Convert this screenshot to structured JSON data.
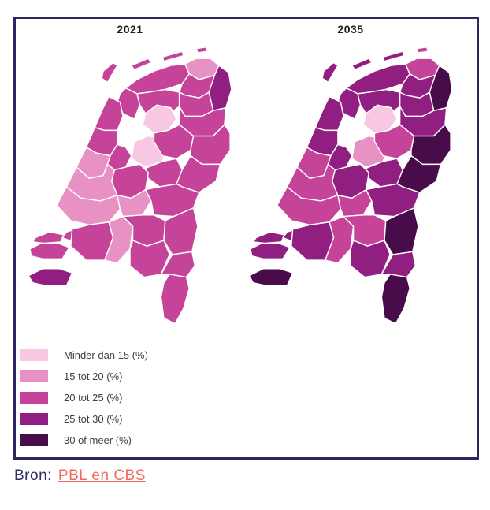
{
  "chart_data": {
    "type": "choropleth",
    "geography": "Nederland",
    "maps": [
      "2021",
      "2035"
    ],
    "unit": "%",
    "legend_position": "bottom-left",
    "classes": [
      {
        "label": "Minder dan 15 (%)",
        "color": "#f8c8e3"
      },
      {
        "label": "15 tot 20 (%)",
        "color": "#e791c5"
      },
      {
        "label": "20 tot 25 (%)",
        "color": "#c5449a"
      },
      {
        "label": "25 tot 30 (%)",
        "color": "#911e81"
      },
      {
        "label": "30 of meer (%)",
        "color": "#490c4b"
      }
    ],
    "regions": [
      {
        "id": "texel",
        "class_by_year": [
          3,
          4
        ]
      },
      {
        "id": "terschelling",
        "class_by_year": [
          3,
          4
        ]
      },
      {
        "id": "ameland",
        "class_by_year": [
          3,
          4
        ]
      },
      {
        "id": "schiermonnikoog",
        "class_by_year": [
          3,
          3
        ]
      },
      {
        "id": "friesland-noord",
        "class_by_year": [
          3,
          4
        ]
      },
      {
        "id": "friesland-zuidwest",
        "class_by_year": [
          3,
          4
        ]
      },
      {
        "id": "friesland-zuidoost",
        "class_by_year": [
          3,
          4
        ]
      },
      {
        "id": "groningen-noord",
        "class_by_year": [
          2,
          3
        ]
      },
      {
        "id": "groningen-stad",
        "class_by_year": [
          3,
          4
        ]
      },
      {
        "id": "oost-groningen",
        "class_by_year": [
          4,
          5
        ]
      },
      {
        "id": "drenthe-noord",
        "class_by_year": [
          3,
          4
        ]
      },
      {
        "id": "drenthe-zuid",
        "class_by_year": [
          3,
          4
        ]
      },
      {
        "id": "noordoostpolder",
        "class_by_year": [
          1,
          1
        ]
      },
      {
        "id": "flevoland",
        "class_by_year": [
          1,
          2
        ]
      },
      {
        "id": "overijssel-west",
        "class_by_year": [
          3,
          3
        ]
      },
      {
        "id": "twente",
        "class_by_year": [
          3,
          5
        ]
      },
      {
        "id": "veluwe",
        "class_by_year": [
          3,
          4
        ]
      },
      {
        "id": "achterhoek",
        "class_by_year": [
          3,
          5
        ]
      },
      {
        "id": "kop-noord-holland",
        "class_by_year": [
          3,
          4
        ]
      },
      {
        "id": "alkmaar",
        "class_by_year": [
          3,
          4
        ]
      },
      {
        "id": "amsterdam",
        "class_by_year": [
          3,
          4
        ]
      },
      {
        "id": "haarlem-leiden",
        "class_by_year": [
          2,
          3
        ]
      },
      {
        "id": "den-haag",
        "class_by_year": [
          2,
          3
        ]
      },
      {
        "id": "rotterdam",
        "class_by_year": [
          2,
          3
        ]
      },
      {
        "id": "utrecht",
        "class_by_year": [
          3,
          4
        ]
      },
      {
        "id": "betuwe",
        "class_by_year": [
          2,
          3
        ]
      },
      {
        "id": "arnhem-nijmegen",
        "class_by_year": [
          3,
          4
        ]
      },
      {
        "id": "schouwen",
        "class_by_year": [
          3,
          4
        ]
      },
      {
        "id": "tholen",
        "class_by_year": [
          3,
          4
        ]
      },
      {
        "id": "walcheren",
        "class_by_year": [
          3,
          4
        ]
      },
      {
        "id": "zeeuws-vlaanderen",
        "class_by_year": [
          4,
          5
        ]
      },
      {
        "id": "brabant-west",
        "class_by_year": [
          3,
          4
        ]
      },
      {
        "id": "brabant-midden",
        "class_by_year": [
          2,
          3
        ]
      },
      {
        "id": "brabant-noordoost",
        "class_by_year": [
          3,
          3
        ]
      },
      {
        "id": "brabant-zuidoost",
        "class_by_year": [
          3,
          4
        ]
      },
      {
        "id": "limburg-noord",
        "class_by_year": [
          3,
          5
        ]
      },
      {
        "id": "limburg-midden",
        "class_by_year": [
          3,
          4
        ]
      },
      {
        "id": "limburg-zuid",
        "class_by_year": [
          3,
          5
        ]
      }
    ]
  },
  "source": {
    "prefix": "Bron:",
    "link_text": "PBL en CBS"
  },
  "colors": {
    "frame": "#2b2a5e",
    "map_border": "#ffffff",
    "title_text": "#1f1f1f",
    "legend_text": "#404040",
    "source_text": "#2d2f63",
    "source_link": "#f2695e",
    "background": "#ffffff"
  }
}
